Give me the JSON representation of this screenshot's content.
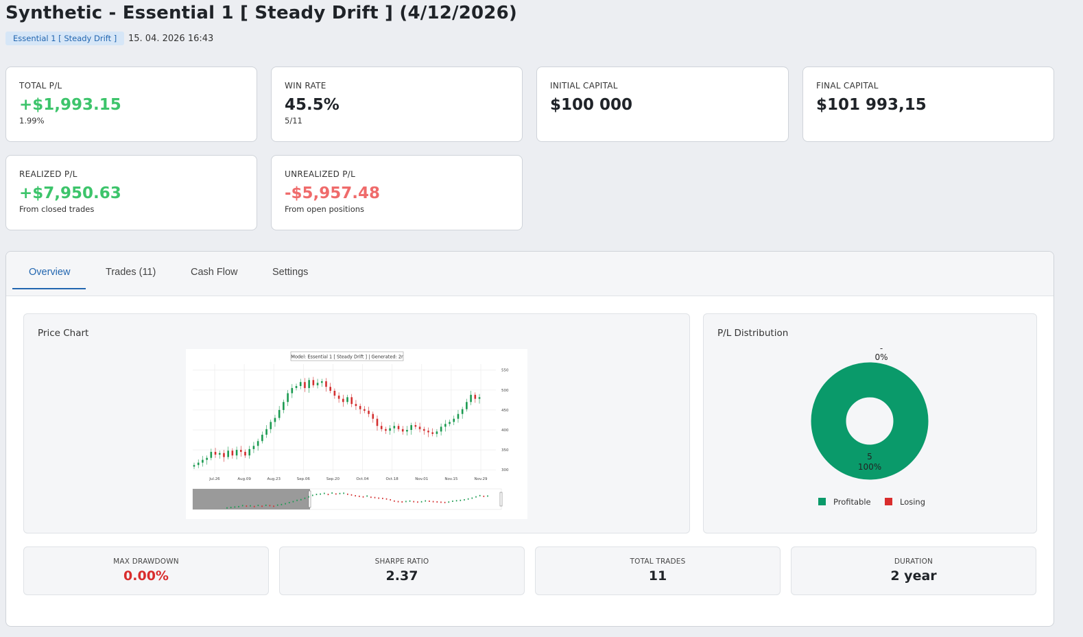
{
  "header": {
    "title": "Synthetic - Essential 1 [ Steady Drift ] (4/12/2026)",
    "model_badge": "Essential 1 [ Steady Drift ]",
    "timestamp": "15. 04. 2026 16:43"
  },
  "cards": {
    "total_pl": {
      "label": "TOTAL P/L",
      "value": "+$1,993.15",
      "sub": "1.99%"
    },
    "win_rate": {
      "label": "WIN RATE",
      "value": "45.5%",
      "sub": "5/11"
    },
    "initial_capital": {
      "label": "INITIAL CAPITAL",
      "value": "$100 000"
    },
    "final_capital": {
      "label": "FINAL CAPITAL",
      "value": "$101 993,15"
    },
    "realized_pl": {
      "label": "REALIZED P/L",
      "value": "+$7,950.63",
      "sub": "From closed trades"
    },
    "unrealized_pl": {
      "label": "UNREALIZED P/L",
      "value": "-$5,957.48",
      "sub": "From open positions"
    }
  },
  "tabs": [
    {
      "label": "Overview",
      "active": true
    },
    {
      "label": "Trades (11)"
    },
    {
      "label": "Cash Flow"
    },
    {
      "label": "Settings"
    }
  ],
  "price_chart": {
    "title": "Price Chart",
    "caption": "Model: Essential 1 [ Steady Drift ] | Generated: 2r",
    "x_ticks": [
      "Jul.26",
      "Aug.09",
      "Aug.23",
      "Sep.06",
      "Sep.20",
      "Oct.04",
      "Oct.18",
      "Nov.01",
      "Nov.15",
      "Nov.29"
    ],
    "y_ticks": [
      "550",
      "500",
      "450",
      "400",
      "350",
      "300"
    ]
  },
  "pl_distribution": {
    "title": "P/L Distribution",
    "top_label_dash": "-",
    "top_label_pct": "0%",
    "bottom_label_count": "5",
    "bottom_label_pct": "100%",
    "legend": [
      {
        "label": "Profitable",
        "color": "#0a9a6a"
      },
      {
        "label": "Losing",
        "color": "#d92d2d"
      }
    ]
  },
  "stats": {
    "max_drawdown": {
      "label": "MAX DRAWDOWN",
      "value": "0.00%"
    },
    "sharpe_ratio": {
      "label": "SHARPE RATIO",
      "value": "2.37"
    },
    "total_trades": {
      "label": "TOTAL TRADES",
      "value": "11"
    },
    "duration": {
      "label": "DURATION",
      "value": "2 year"
    }
  },
  "colors": {
    "positive": "#3dc46b",
    "negative": "#ef6b6b",
    "accent": "#2266b0",
    "candle_up": "#1a9a50",
    "candle_down": "#d32f2f"
  }
}
